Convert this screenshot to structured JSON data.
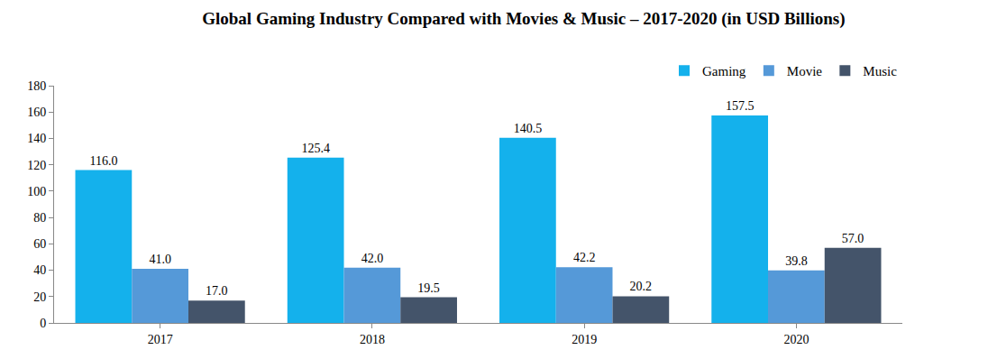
{
  "chart_data": {
    "type": "bar",
    "title": "Global Gaming Industry Compared with Movies & Music – 2017-2020 (in USD Billions)",
    "categories": [
      "2017",
      "2018",
      "2019",
      "2020"
    ],
    "series": [
      {
        "name": "Gaming",
        "color": "#14b1ec",
        "values": [
          116.0,
          125.4,
          140.5,
          157.5
        ],
        "value_labels": [
          "116.0",
          "125.4",
          "140.5",
          "157.5"
        ]
      },
      {
        "name": "Movie",
        "color": "#5599d8",
        "values": [
          41.0,
          42.0,
          42.2,
          39.8
        ],
        "value_labels": [
          "41.0",
          "42.0",
          "42.2",
          "39.8"
        ]
      },
      {
        "name": "Music",
        "color": "#44546a",
        "values": [
          17.0,
          19.5,
          20.2,
          57.0
        ],
        "value_labels": [
          "17.0",
          "19.5",
          "20.2",
          "57.0"
        ]
      }
    ],
    "ylim": [
      0,
      180
    ],
    "yticks": [
      0,
      20,
      40,
      60,
      80,
      100,
      120,
      140,
      160,
      180
    ],
    "grid": false,
    "legend": "top-right",
    "data_labels": true
  }
}
